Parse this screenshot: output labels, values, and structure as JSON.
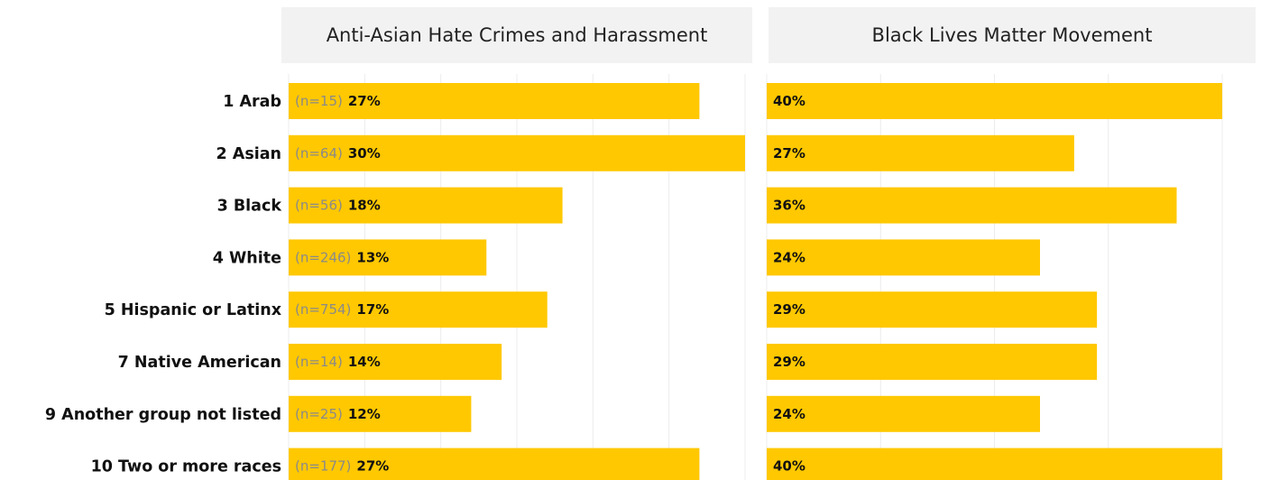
{
  "chart_data": {
    "type": "bar",
    "orientation": "horizontal",
    "categories": [
      "1 Arab",
      "2 Asian",
      "3 Black",
      "4 White",
      "5 Hispanic or Latinx",
      "7 Native American",
      "9 Another group not listed",
      "10 Two or more races"
    ],
    "n_labels": [
      "(n=15)",
      "(n=64)",
      "(n=56)",
      "(n=246)",
      "(n=754)",
      "(n=14)",
      "(n=25)",
      "(n=177)"
    ],
    "panels": [
      {
        "title": "Anti-Asian Hate Crimes and Harassment",
        "values": [
          27,
          30,
          18,
          13,
          17,
          14,
          12,
          27
        ],
        "labels": [
          "27%",
          "30%",
          "18%",
          "13%",
          "17%",
          "14%",
          "12%",
          "27%"
        ],
        "xlim": [
          0,
          30
        ]
      },
      {
        "title": "Black Lives Matter Movement",
        "values": [
          40,
          27,
          36,
          24,
          29,
          29,
          24,
          40
        ],
        "labels": [
          "40%",
          "27%",
          "36%",
          "24%",
          "29%",
          "29%",
          "24%",
          "40%"
        ],
        "xlim": [
          0,
          40
        ]
      }
    ],
    "bar_color": "#ffc800",
    "grid": true,
    "legend": "none"
  }
}
